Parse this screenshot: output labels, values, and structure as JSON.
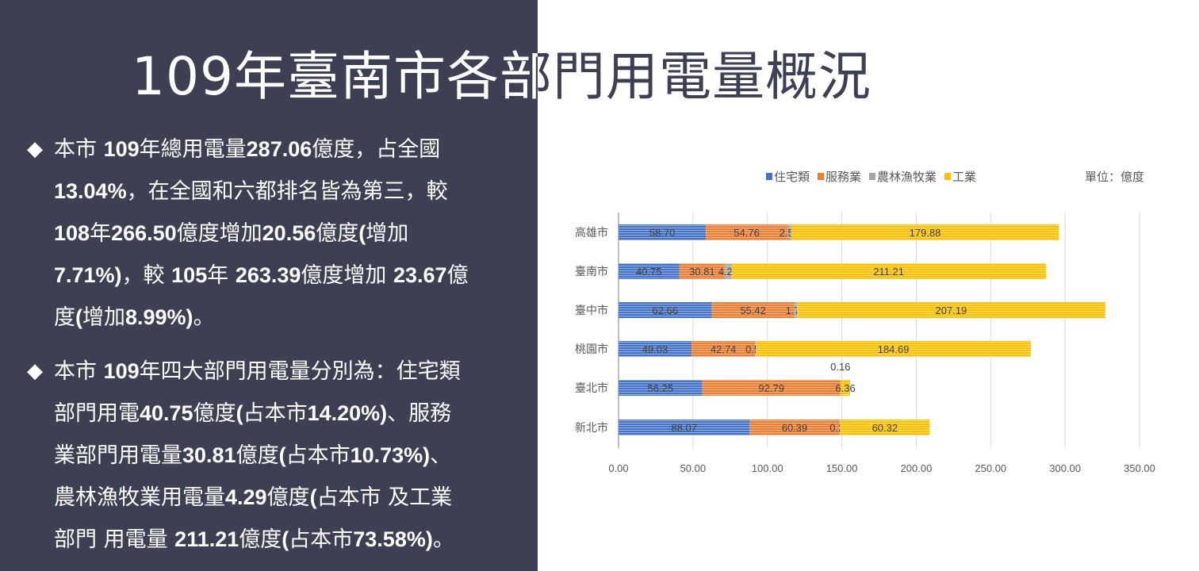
{
  "title": "109年臺南市各部門用電量概況",
  "bullets": [
    {
      "icon": "diamond-bullet",
      "lines": [
        [
          {
            "t": "本市 "
          },
          {
            "t": "109",
            "b": true
          },
          {
            "t": "年總用電量"
          },
          {
            "t": "287.06",
            "b": true
          },
          {
            "t": "億度，占全國"
          }
        ],
        [
          {
            "t": "13.04%",
            "b": true
          },
          {
            "t": "，在全國和六都排名皆為第三，較"
          }
        ],
        [
          {
            "t": "108",
            "b": true
          },
          {
            "t": "年"
          },
          {
            "t": "266.50",
            "b": true
          },
          {
            "t": "億度增加"
          },
          {
            "t": "20.56",
            "b": true
          },
          {
            "t": "億度"
          },
          {
            "t": "(",
            "b": true
          },
          {
            "t": "增加"
          }
        ],
        [
          {
            "t": "7.71%)",
            "b": true
          },
          {
            "t": "，較 "
          },
          {
            "t": "105",
            "b": true
          },
          {
            "t": "年 "
          },
          {
            "t": "263.39",
            "b": true
          },
          {
            "t": "億度增加 "
          },
          {
            "t": "23.67",
            "b": true
          },
          {
            "t": "億"
          }
        ],
        [
          {
            "t": "度"
          },
          {
            "t": "(",
            "b": true
          },
          {
            "t": "增加"
          },
          {
            "t": "8.99%)",
            "b": true
          },
          {
            "t": "。"
          }
        ]
      ]
    },
    {
      "icon": "diamond-bullet",
      "lines": [
        [
          {
            "t": "本市 "
          },
          {
            "t": "109",
            "b": true
          },
          {
            "t": "年四大部門用電量分別為：住宅類"
          }
        ],
        [
          {
            "t": "部門用電"
          },
          {
            "t": "40.75",
            "b": true
          },
          {
            "t": "億度"
          },
          {
            "t": "(",
            "b": true
          },
          {
            "t": "占本市"
          },
          {
            "t": "14.20%)",
            "b": true
          },
          {
            "t": "、服務"
          }
        ],
        [
          {
            "t": "業部門用電量"
          },
          {
            "t": "30.81",
            "b": true
          },
          {
            "t": "億度"
          },
          {
            "t": "(",
            "b": true
          },
          {
            "t": "占本市"
          },
          {
            "t": "10.73%)",
            "b": true
          },
          {
            "t": "、"
          }
        ],
        [
          {
            "t": "農林漁牧業用電量"
          },
          {
            "t": "4.29",
            "b": true
          },
          {
            "t": "億度"
          },
          {
            "t": "(",
            "b": true
          },
          {
            "t": "占本市 及工業"
          }
        ],
        [
          {
            "t": "部門 用電量 "
          },
          {
            "t": "211.21",
            "b": true
          },
          {
            "t": "億度"
          },
          {
            "t": "(",
            "b": true
          },
          {
            "t": "占本市"
          },
          {
            "t": "73.58%)",
            "b": true
          },
          {
            "t": "。"
          }
        ]
      ]
    }
  ],
  "chart_data": {
    "type": "bar",
    "orientation": "horizontal",
    "stacked": true,
    "unit_label": "單位：億度",
    "categories": [
      "高雄市",
      "臺南市",
      "臺中市",
      "桃園市",
      "臺北市",
      "新北市"
    ],
    "series": [
      {
        "name": "住宅類",
        "color": "#4472c4",
        "values": [
          58.7,
          40.75,
          62.66,
          49.03,
          56.25,
          88.07
        ]
      },
      {
        "name": "服務業",
        "color": "#ed7d31",
        "values": [
          54.76,
          30.81,
          55.42,
          42.74,
          92.79,
          60.39
        ]
      },
      {
        "name": "農林漁牧業",
        "color": "#a5a5a5",
        "values": [
          2.53,
          4.29,
          1.75,
          0.53,
          0.16,
          0.29
        ]
      },
      {
        "name": "工業",
        "color": "#ffc000",
        "values": [
          179.88,
          211.21,
          207.19,
          184.69,
          6.36,
          60.32
        ]
      }
    ],
    "xlim": [
      0,
      350
    ],
    "xticks": [
      "0.00",
      "50.00",
      "100.00",
      "150.00",
      "200.00",
      "250.00",
      "300.00",
      "350.00"
    ],
    "grid": true,
    "legend_position": "top",
    "data_labels": true
  }
}
